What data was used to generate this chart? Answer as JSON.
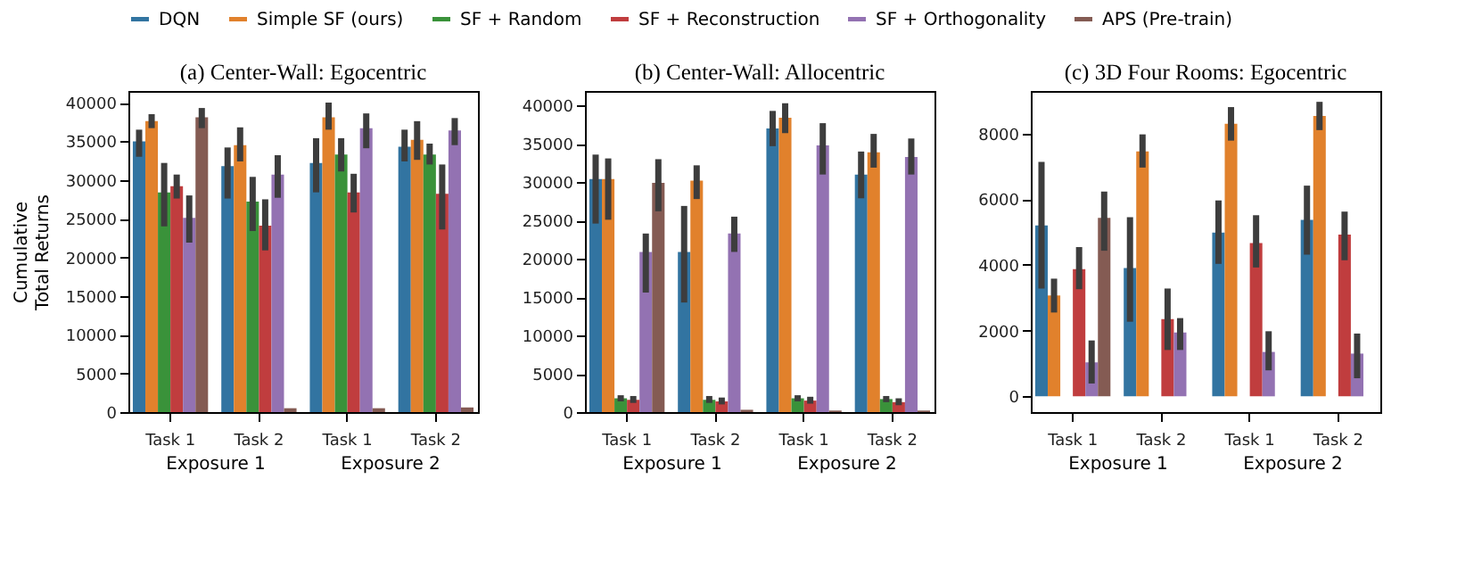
{
  "chart_data": [
    {
      "type": "bar",
      "title": "(a) Center-Wall: Egocentric",
      "ylabel": "Cumulative\nTotal Returns",
      "categories": [
        "Task 1",
        "Task 2",
        "Task 1",
        "Task 2"
      ],
      "ylim": [
        0,
        41500
      ],
      "yticks": [
        0,
        5000,
        10000,
        15000,
        20000,
        25000,
        30000,
        35000,
        40000
      ],
      "legend": "top",
      "annotations": [
        "Exposure 1",
        "Exposure 2"
      ],
      "series": [
        {
          "name": "DQN",
          "color": "#3274a1",
          "values": [
            35000,
            31800,
            32200,
            34300
          ],
          "errors": [
            [
              33000,
              36500
            ],
            [
              27600,
              34200
            ],
            [
              28400,
              35400
            ],
            [
              32400,
              36500
            ]
          ]
        },
        {
          "name": "Simple SF (ours)",
          "color": "#e1812c",
          "values": [
            37600,
            34500,
            38100,
            35200
          ],
          "errors": [
            [
              36700,
              38500
            ],
            [
              32400,
              36800
            ],
            [
              36500,
              40000
            ],
            [
              32600,
              37600
            ]
          ]
        },
        {
          "name": "SF + Random",
          "color": "#3a923a",
          "values": [
            28400,
            27200,
            33300,
            33300
          ],
          "errors": [
            [
              24000,
              32200
            ],
            [
              23400,
              30400
            ],
            [
              31100,
              35400
            ],
            [
              32000,
              34700
            ]
          ]
        },
        {
          "name": "SF + Reconstruction",
          "color": "#c03d3e",
          "values": [
            29200,
            24100,
            28400,
            28200
          ],
          "errors": [
            [
              27600,
              30700
            ],
            [
              20900,
              27500
            ],
            [
              25800,
              30800
            ],
            [
              23600,
              32000
            ]
          ]
        },
        {
          "name": "SF + Orthogonality",
          "color": "#9372b2",
          "values": [
            25100,
            30700,
            36700,
            36400
          ],
          "errors": [
            [
              21900,
              28000
            ],
            [
              27700,
              33200
            ],
            [
              34100,
              38600
            ],
            [
              34500,
              38000
            ]
          ]
        },
        {
          "name": "APS (Pre-train)",
          "color": "#845b53",
          "values": [
            38100,
            500,
            500,
            600
          ],
          "errors": [
            [
              36700,
              39300
            ],
            null,
            null,
            null
          ]
        }
      ]
    },
    {
      "type": "bar",
      "title": "(b) Center-Wall: Allocentric",
      "categories": [
        "Task 1",
        "Task 2",
        "Task 1",
        "Task 2"
      ],
      "ylim": [
        0,
        41900
      ],
      "yticks": [
        0,
        5000,
        10000,
        15000,
        20000,
        25000,
        30000,
        35000,
        40000
      ],
      "annotations": [
        "Exposure 1",
        "Exposure 2"
      ],
      "series": [
        {
          "color": "#3274a1",
          "values": [
            30400,
            20900,
            37000,
            31000
          ],
          "errors": [
            [
              24600,
              33600
            ],
            [
              14300,
              26900
            ],
            [
              34700,
              39300
            ],
            [
              27900,
              34000
            ]
          ]
        },
        {
          "color": "#e1812c",
          "values": [
            30400,
            30200,
            38400,
            33900
          ],
          "errors": [
            [
              25100,
              33100
            ],
            [
              27800,
              32200
            ],
            [
              36400,
              40300
            ],
            [
              31900,
              36300
            ]
          ]
        },
        {
          "color": "#3a923a",
          "values": [
            1800,
            1600,
            1800,
            1700
          ],
          "errors": [
            [
              1400,
              2200
            ],
            [
              1200,
              2100
            ],
            [
              1400,
              2200
            ],
            [
              1300,
              2100
            ]
          ]
        },
        {
          "color": "#c03d3e",
          "values": [
            1600,
            1400,
            1500,
            1300
          ],
          "errors": [
            [
              1200,
              2100
            ],
            [
              1000,
              1900
            ],
            [
              1100,
              2000
            ],
            [
              900,
              1800
            ]
          ]
        },
        {
          "color": "#9372b2",
          "values": [
            20900,
            23300,
            34800,
            33300
          ],
          "errors": [
            [
              15600,
              23300
            ],
            [
              20900,
              25500
            ],
            [
              31000,
              37700
            ],
            [
              31000,
              35700
            ]
          ]
        },
        {
          "color": "#845b53",
          "values": [
            29900,
            300,
            200,
            200
          ],
          "errors": [
            [
              26200,
              33000
            ],
            null,
            null,
            null
          ]
        }
      ]
    },
    {
      "type": "bar",
      "title": "(c) 3D Four Rooms: Egocentric",
      "categories": [
        "Task 1",
        "Task 2",
        "Task 1",
        "Task 2"
      ],
      "ylim": [
        -480,
        9290
      ],
      "yticks": [
        0,
        2000,
        4000,
        6000,
        8000
      ],
      "annotations": [
        "Exposure 1",
        "Exposure 2"
      ],
      "series": [
        {
          "color": "#3274a1",
          "values": [
            5200,
            3900,
            4980,
            5370
          ],
          "errors": [
            [
              3280,
              7130
            ],
            [
              2270,
              5450
            ],
            [
              4030,
              5960
            ],
            [
              4310,
              6410
            ]
          ]
        },
        {
          "color": "#e1812c",
          "values": [
            3070,
            7450,
            8290,
            8530
          ],
          "errors": [
            [
              2550,
              3580
            ],
            [
              6960,
              7970
            ],
            [
              7780,
              8800
            ],
            [
              8100,
              8960
            ]
          ]
        },
        {
          "color": "#3a923a",
          "values": [
            0,
            0,
            0,
            0
          ],
          "errors": [
            null,
            null,
            null,
            null
          ]
        },
        {
          "color": "#c03d3e",
          "values": [
            3870,
            2350,
            4660,
            4920
          ],
          "errors": [
            [
              3260,
              4540
            ],
            [
              1410,
              3280
            ],
            [
              3920,
              5510
            ],
            [
              4140,
              5620
            ]
          ]
        },
        {
          "color": "#9372b2",
          "values": [
            1030,
            1940,
            1350,
            1300
          ],
          "errors": [
            [
              390,
              1700
            ],
            [
              1410,
              2380
            ],
            [
              790,
              1980
            ],
            [
              550,
              1910
            ]
          ]
        },
        {
          "color": "#845b53",
          "values": [
            5430,
            0,
            0,
            0
          ],
          "errors": [
            [
              4430,
              6230
            ],
            null,
            null,
            null
          ]
        }
      ]
    }
  ]
}
